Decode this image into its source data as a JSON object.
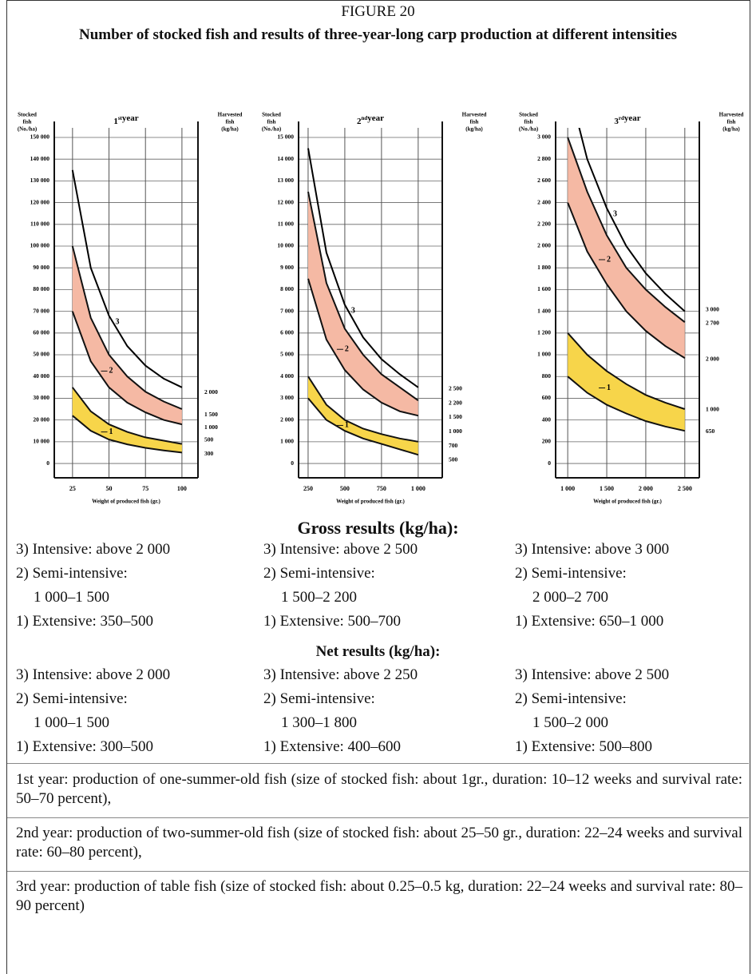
{
  "figure_label": "FIGURE 20",
  "title": "Number of stocked fish and results of three-year-long carp production at different intensities",
  "chart_data": [
    {
      "type": "line",
      "title_num": "1",
      "title_sup": "st",
      "title_word": "year",
      "y_label": [
        "Stocked",
        "fish",
        "(No./ha)"
      ],
      "y2_label": [
        "Harvested",
        "fish",
        "(kg/ha)"
      ],
      "x_label": "Weight of produced fish (gr.)",
      "x": [
        25,
        37.5,
        50,
        62.5,
        75,
        87.5,
        100
      ],
      "xlim": [
        12.5,
        111
      ],
      "xticks": [
        25,
        50,
        75,
        100
      ],
      "ylim": [
        -6600,
        154400
      ],
      "yticks": [
        0,
        {
          "value": 10000,
          "label": "10 000"
        },
        {
          "value": 20000,
          "label": "20 000"
        },
        {
          "value": 30000,
          "label": "30 000"
        },
        {
          "value": 40000,
          "label": "40 000"
        },
        {
          "value": 50000,
          "label": "50 000"
        },
        {
          "value": 60000,
          "label": "60 000"
        },
        {
          "value": 70000,
          "label": "70 000"
        },
        {
          "value": 80000,
          "label": "80 000"
        },
        {
          "value": 90000,
          "label": "90 000"
        },
        {
          "value": 100000,
          "label": "100 000"
        },
        {
          "value": 110000,
          "label": "110 000"
        },
        {
          "value": 120000,
          "label": "120 000"
        },
        {
          "value": 130000,
          "label": "130 000"
        },
        {
          "value": 140000,
          "label": "140 000"
        },
        {
          "value": 150000,
          "label": "150 000"
        }
      ],
      "grid": true,
      "series": [
        {
          "name": "3",
          "color": "#000000",
          "values": [
            135000,
            90000,
            68000,
            54000,
            45000,
            39000,
            35000
          ]
        },
        {
          "name": "2",
          "color": "#f5b9a4",
          "values": [
            100000,
            67000,
            50000,
            40000,
            33000,
            28500,
            25000
          ],
          "low": [
            70000,
            47000,
            35000,
            28000,
            23500,
            20000,
            18000
          ]
        },
        {
          "name": "1",
          "color": "#f7d54a",
          "values": [
            35000,
            24000,
            18000,
            14500,
            12000,
            10500,
            9000
          ],
          "low": [
            22000,
            15000,
            11000,
            8800,
            7200,
            6000,
            5000
          ]
        }
      ],
      "right_labels": [
        {
          "value": 32700,
          "label": "2 000"
        },
        {
          "value": 22400,
          "label": "1 500"
        },
        {
          "value": 16500,
          "label": "1 000"
        },
        {
          "value": 10700,
          "label": "500"
        },
        {
          "value": 4400,
          "label": "300"
        }
      ]
    },
    {
      "type": "line",
      "title_num": "2",
      "title_sup": "nd",
      "title_word": "year",
      "y_label": [
        "Stocked",
        "fish",
        "(No./ha)"
      ],
      "y2_label": [
        "Harvested",
        "fish",
        "(kg/ha)"
      ],
      "x_label": "Weight of produced fish (gr.)",
      "x": [
        250,
        375,
        500,
        625,
        750,
        875,
        1000
      ],
      "xlim": [
        185,
        1164
      ],
      "xticks": [
        250,
        500,
        750,
        {
          "value": 1000,
          "label": "1 000"
        }
      ],
      "ylim": [
        -660,
        15440
      ],
      "yticks": [
        0,
        {
          "value": 1000,
          "label": "1 000"
        },
        {
          "value": 2000,
          "label": "2 000"
        },
        {
          "value": 3000,
          "label": "3 000"
        },
        {
          "value": 4000,
          "label": "4 000"
        },
        {
          "value": 5000,
          "label": "5 000"
        },
        {
          "value": 6000,
          "label": "6 000"
        },
        {
          "value": 7000,
          "label": "7 000"
        },
        {
          "value": 8000,
          "label": "8 000"
        },
        {
          "value": 9000,
          "label": "9 000"
        },
        {
          "value": 10000,
          "label": "10 000"
        },
        {
          "value": 11000,
          "label": "11 000"
        },
        {
          "value": 12000,
          "label": "12 000"
        },
        {
          "value": 13000,
          "label": "13 000"
        },
        {
          "value": 14000,
          "label": "14 000"
        },
        {
          "value": 15000,
          "label": "15 000"
        }
      ],
      "grid": true,
      "series": [
        {
          "name": "3",
          "color": "#000000",
          "values": [
            14500,
            9700,
            7300,
            5800,
            4800,
            4100,
            3500
          ]
        },
        {
          "name": "2",
          "color": "#f5b9a4",
          "values": [
            12500,
            8300,
            6200,
            5000,
            4100,
            3500,
            2900
          ],
          "low": [
            8500,
            5700,
            4300,
            3400,
            2800,
            2400,
            2200
          ]
        },
        {
          "name": "1",
          "color": "#f7d54a",
          "values": [
            4000,
            2700,
            2000,
            1600,
            1350,
            1150,
            1000
          ],
          "low": [
            3000,
            2000,
            1500,
            1150,
            900,
            650,
            400
          ]
        }
      ],
      "right_labels": [
        {
          "value": 3420,
          "label": "2 500"
        },
        {
          "value": 2760,
          "label": "2 200"
        },
        {
          "value": 2130,
          "label": "1 500"
        },
        {
          "value": 1470,
          "label": "1 000"
        },
        {
          "value": 800,
          "label": "700"
        },
        {
          "value": 150,
          "label": "500"
        }
      ]
    },
    {
      "type": "line",
      "title_num": "3",
      "title_sup": "rd",
      "title_word": "year",
      "y_label": [
        "Stocked",
        "fish",
        "(No./ha)"
      ],
      "y2_label": [
        "Harvested",
        "fish",
        "(kg/ha)"
      ],
      "x_label": "Weight of produced fish (gr.)",
      "x": [
        1000,
        1250,
        1500,
        1750,
        2000,
        2250,
        2500
      ],
      "xlim": [
        845,
        2686
      ],
      "xticks": [
        {
          "value": 1000,
          "label": "1 000"
        },
        {
          "value": 1500,
          "label": "1 500"
        },
        {
          "value": 2000,
          "label": "2 000"
        },
        {
          "value": 2500,
          "label": "2 500"
        }
      ],
      "ylim": [
        -132,
        3088
      ],
      "yticks": [
        0,
        200,
        400,
        600,
        800,
        {
          "value": 1000,
          "label": "1 000"
        },
        {
          "value": 1200,
          "label": "1 200"
        },
        {
          "value": 1400,
          "label": "1 400"
        },
        {
          "value": 1600,
          "label": "1 600"
        },
        {
          "value": 1800,
          "label": "1 800"
        },
        {
          "value": 2000,
          "label": "2 000"
        },
        {
          "value": 2200,
          "label": "2 200"
        },
        {
          "value": 2400,
          "label": "2 400"
        },
        {
          "value": 2600,
          "label": "2 600"
        },
        {
          "value": 2800,
          "label": "2 800"
        },
        {
          "value": 3000,
          "label": "3 000"
        }
      ],
      "grid": true,
      "series": [
        {
          "name": "3",
          "color": "#000000",
          "values": [
            3500,
            2800,
            2350,
            2000,
            1750,
            1560,
            1400
          ]
        },
        {
          "name": "2",
          "color": "#f5b9a4",
          "values": [
            3000,
            2500,
            2100,
            1800,
            1600,
            1440,
            1300
          ],
          "low": [
            2400,
            1950,
            1650,
            1400,
            1220,
            1080,
            970
          ]
        },
        {
          "name": "1",
          "color": "#f7d54a",
          "values": [
            1200,
            1000,
            850,
            730,
            630,
            560,
            500
          ],
          "low": [
            800,
            650,
            540,
            460,
            390,
            340,
            300
          ]
        }
      ],
      "right_labels": [
        {
          "value": 1412,
          "label": "3 000"
        },
        {
          "value": 1287,
          "label": "2 700"
        },
        {
          "value": 956,
          "label": "2 000"
        },
        {
          "value": 493,
          "label": "1 000"
        },
        {
          "value": 294,
          "label": "650"
        }
      ]
    }
  ],
  "gross": {
    "heading": "Gross results (kg/ha):",
    "columns": [
      [
        "3) Intensive: above 2 000",
        "2) Semi-intensive:",
        "1 000–1 500",
        "1) Extensive: 350–500"
      ],
      [
        "3) Intensive: above 2 500",
        "2) Semi-intensive:",
        "1 500–2 200",
        "1) Extensive: 500–700"
      ],
      [
        "3) Intensive: above 3 000",
        "2) Semi-intensive:",
        "2 000–2 700",
        "1) Extensive: 650–1 000"
      ]
    ]
  },
  "net": {
    "heading": "Net results (kg/ha):",
    "columns": [
      [
        "3) Intensive: above 2 000",
        "2) Semi-intensive:",
        "1 000–1 500",
        "1) Extensive: 300–500"
      ],
      [
        "3) Intensive: above 2 250",
        "2) Semi-intensive:",
        "1 300–1 800",
        "1) Extensive: 400–600"
      ],
      [
        "3) Intensive: above 2 500",
        "2) Semi-intensive:",
        "1 500–2 000",
        "1) Extensive: 500–800"
      ]
    ]
  },
  "notes": [
    "1st year: production of one-summer-old fish (size of stocked fish: about 1gr., duration: 10–12 weeks and survival rate: 50–70 percent),",
    "2nd year: production of two-summer-old fish (size of stocked fish: about 25–50 gr., duration: 22–24 weeks and survival rate: 60–80 percent),",
    "3rd year: production of table fish (size of stocked fish: about 0.25–0.5 kg, duration: 22–24 weeks and survival rate: 80–90 percent)"
  ]
}
